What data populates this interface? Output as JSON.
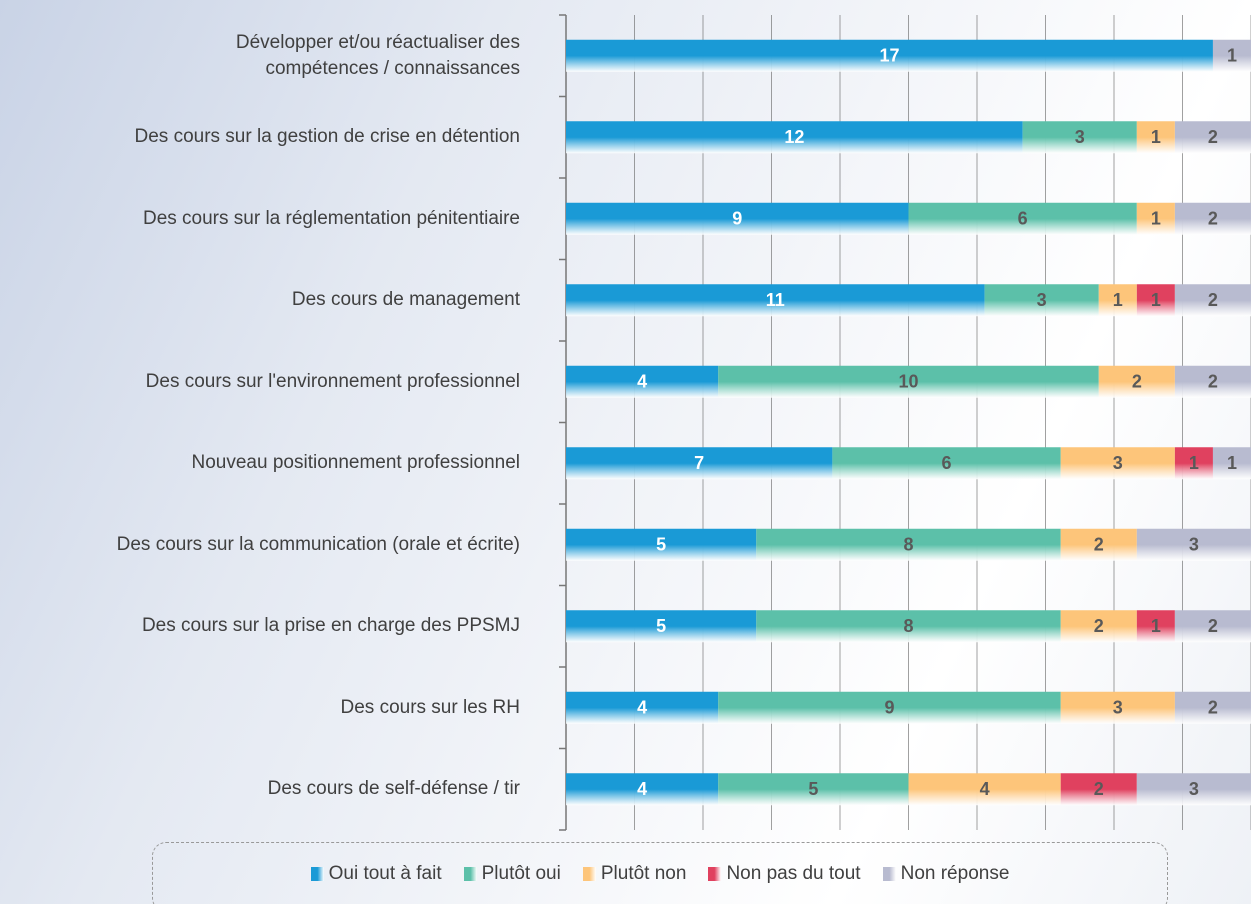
{
  "chart_data": {
    "type": "bar",
    "orientation": "horizontal",
    "stacked": true,
    "categories": [
      "Développer et/ou réactualiser des\ncompétences / connaissances",
      "Des cours sur la gestion de crise en détention",
      "Des cours sur la réglementation pénitentiaire",
      "Des cours de management",
      "Des cours sur l'environnement professionnel",
      "Nouveau positionnement professionnel",
      "Des cours sur la communication (orale et écrite)",
      "Des cours sur la prise en charge des PPSMJ",
      "Des cours sur les RH",
      "Des cours de self-défense / tir"
    ],
    "series": [
      {
        "name": "Oui tout à fait",
        "color": "#1a9ad6",
        "values": [
          17,
          12,
          9,
          11,
          4,
          7,
          5,
          5,
          4,
          4
        ]
      },
      {
        "name": "Plutôt oui",
        "color": "#5cc0a9",
        "values": [
          null,
          3,
          6,
          3,
          10,
          6,
          8,
          8,
          9,
          5
        ]
      },
      {
        "name": "Plutôt non",
        "color": "#fdc57a",
        "values": [
          null,
          1,
          1,
          1,
          2,
          3,
          2,
          2,
          3,
          4
        ]
      },
      {
        "name": "Non pas du tout",
        "color": "#e0415f",
        "values": [
          null,
          null,
          null,
          1,
          null,
          1,
          null,
          1,
          null,
          2
        ]
      },
      {
        "name": "Non réponse",
        "color": "#b8bbd0",
        "values": [
          1,
          2,
          2,
          2,
          2,
          1,
          3,
          2,
          2,
          3
        ]
      }
    ],
    "xlim": [
      0,
      18
    ],
    "xticks": [
      0,
      1.8,
      3.6,
      5.4,
      7.2,
      9,
      10.8,
      12.6,
      14.4,
      16.2,
      18
    ],
    "grid": true
  }
}
